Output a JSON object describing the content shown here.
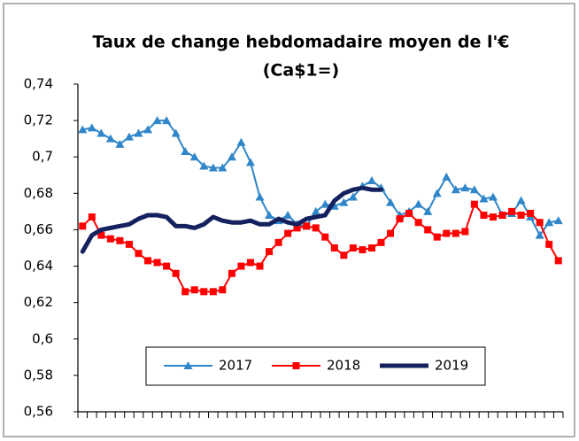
{
  "chart_data": {
    "type": "line",
    "title": "Taux de change hebdomadaire moyen de l'€",
    "subtitle": "(Ca$1=)",
    "categories": [
      null,
      null,
      null,
      null,
      null,
      null,
      null,
      null,
      null,
      null,
      null,
      null,
      null,
      null,
      null,
      null,
      null,
      null,
      null,
      null,
      null,
      null,
      null,
      null,
      null,
      null,
      null,
      null,
      null,
      null,
      null,
      null,
      null,
      null,
      null,
      null,
      null,
      null,
      null,
      null,
      null,
      null,
      null,
      null,
      null,
      null,
      null,
      null,
      null,
      null,
      null,
      null
    ],
    "series": [
      {
        "name": "2017",
        "color": "#2f86c8",
        "marker": "triangle",
        "width": 2,
        "values": [
          0.715,
          0.716,
          0.713,
          0.71,
          0.707,
          0.711,
          0.713,
          0.715,
          0.72,
          0.72,
          0.713,
          0.703,
          0.7,
          0.695,
          0.694,
          0.694,
          0.7,
          0.708,
          0.697,
          0.678,
          0.668,
          0.665,
          0.668,
          0.663,
          0.662,
          0.67,
          0.674,
          0.673,
          0.675,
          0.678,
          0.684,
          0.687,
          0.683,
          0.675,
          0.668,
          0.67,
          0.674,
          0.67,
          0.68,
          0.689,
          0.682,
          0.683,
          0.682,
          0.677,
          0.678,
          0.668,
          0.669,
          0.676,
          0.667,
          0.657,
          0.664,
          0.665
        ]
      },
      {
        "name": "2018",
        "color": "#ff0000",
        "marker": "square",
        "width": 2,
        "values": [
          0.662,
          0.667,
          0.657,
          0.655,
          0.654,
          0.652,
          0.647,
          0.643,
          0.642,
          0.64,
          0.636,
          0.626,
          0.627,
          0.626,
          0.626,
          0.627,
          0.636,
          0.64,
          0.642,
          0.64,
          0.648,
          0.653,
          0.658,
          0.661,
          0.662,
          0.661,
          0.656,
          0.65,
          0.646,
          0.65,
          0.649,
          0.65,
          0.653,
          0.658,
          0.666,
          0.669,
          0.664,
          0.66,
          0.656,
          0.658,
          0.658,
          0.659,
          0.674,
          0.668,
          0.667,
          0.668,
          0.67,
          0.668,
          0.669,
          0.664,
          0.652,
          0.643
        ]
      },
      {
        "name": "2019",
        "color": "#14215e",
        "marker": "none",
        "width": 5,
        "values": [
          0.648,
          0.657,
          0.66,
          0.661,
          0.662,
          0.663,
          0.666,
          0.668,
          0.668,
          0.667,
          0.662,
          0.662,
          0.661,
          0.663,
          0.667,
          0.665,
          0.664,
          0.664,
          0.665,
          0.663,
          0.663,
          0.666,
          0.664,
          0.663,
          0.666,
          0.667,
          0.668,
          0.676,
          0.68,
          0.682,
          0.683,
          0.682,
          0.682,
          null,
          null,
          null,
          null,
          null,
          null,
          null,
          null,
          null,
          null,
          null,
          null,
          null,
          null,
          null,
          null,
          null,
          null,
          null
        ]
      }
    ],
    "ylim": [
      0.56,
      0.74
    ],
    "yticks": [
      {
        "value": 0.56,
        "label": "0,56"
      },
      {
        "value": 0.58,
        "label": "0,58"
      },
      {
        "value": 0.6,
        "label": "0,6"
      },
      {
        "value": 0.62,
        "label": "0,62"
      },
      {
        "value": 0.64,
        "label": "0,64"
      },
      {
        "value": 0.66,
        "label": "0,66"
      },
      {
        "value": 0.68,
        "label": "0,68"
      },
      {
        "value": 0.7,
        "label": "0,7"
      },
      {
        "value": 0.72,
        "label": "0,72"
      },
      {
        "value": 0.74,
        "label": "0,74"
      }
    ],
    "grid": false,
    "legend": "bottom"
  }
}
